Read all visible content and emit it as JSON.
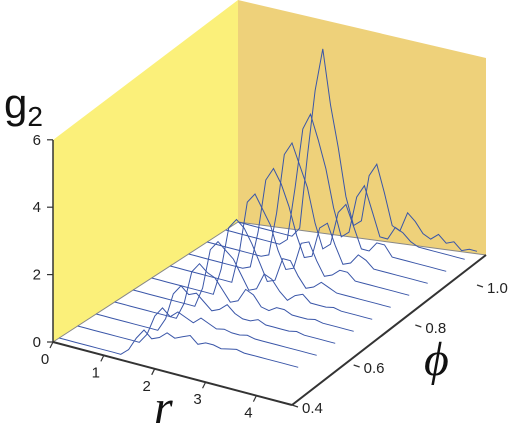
{
  "chart_data": {
    "type": "line",
    "view": "3d-waterfall",
    "x_axis": {
      "label": "r",
      "ticks": [
        "0",
        "1",
        "2",
        "3",
        "4"
      ],
      "range": [
        0,
        4.7
      ]
    },
    "depth_axis": {
      "label": "ϕ",
      "ticks": [
        "0.4",
        "0.6",
        "0.8",
        "1.0"
      ],
      "range": [
        0.4,
        1.0
      ]
    },
    "z_axis": {
      "label": "g",
      "label_sub": "2",
      "ticks": [
        "0",
        "2",
        "4",
        "6"
      ],
      "range": [
        0,
        6
      ]
    },
    "series": [
      {
        "phi": 0.42,
        "values": [
          0,
          0,
          0,
          0,
          0,
          0,
          0,
          0,
          0,
          0.2,
          0.6,
          0.9,
          0.7,
          0.8,
          1.0,
          0.9,
          1.0,
          1.1,
          0.9,
          1.0,
          1.0,
          0.95,
          1.0,
          1.05,
          1.0,
          1.0,
          1.0,
          1.0,
          1.0,
          1.0,
          1.0,
          1.0
        ]
      },
      {
        "phi": 0.48,
        "values": [
          0,
          0,
          0,
          0,
          0,
          0,
          0,
          0,
          0,
          0.3,
          0.9,
          1.2,
          1.0,
          1.2,
          1.1,
          1.0,
          1.2,
          1.1,
          1.0,
          1.05,
          1.0,
          1.0,
          1.05,
          1.0,
          1.0,
          1.0,
          1.0,
          1.0,
          1.0,
          1.0,
          1.0,
          1.0
        ]
      },
      {
        "phi": 0.54,
        "values": [
          0,
          0,
          0,
          0,
          0,
          0,
          0,
          0,
          0,
          0.4,
          1.2,
          1.5,
          1.3,
          1.4,
          1.2,
          1.0,
          1.1,
          1.3,
          1.1,
          1.0,
          1.0,
          1.1,
          1.0,
          1.0,
          1.0,
          1.0,
          1.05,
          1.0,
          1.0,
          1.0,
          1.0,
          1.0
        ]
      },
      {
        "phi": 0.6,
        "values": [
          0,
          0,
          0,
          0,
          0,
          0,
          0,
          0,
          0,
          0.5,
          1.5,
          1.8,
          1.6,
          1.5,
          1.2,
          0.9,
          1.0,
          1.4,
          1.3,
          1.0,
          0.95,
          1.1,
          1.1,
          1.0,
          1.0,
          1.0,
          1.05,
          1.0,
          1.0,
          1.0,
          1.0,
          1.0
        ]
      },
      {
        "phi": 0.66,
        "values": [
          0,
          0,
          0,
          0,
          0,
          0,
          0,
          0,
          0,
          0.6,
          1.8,
          2.1,
          1.9,
          1.7,
          1.3,
          0.9,
          1.0,
          1.5,
          1.4,
          1.1,
          0.9,
          1.1,
          1.2,
          1.0,
          1.0,
          1.0,
          1.05,
          1.0,
          1.0,
          1.0,
          1.0,
          1.0
        ]
      },
      {
        "phi": 0.72,
        "values": [
          0,
          0,
          0,
          0,
          0,
          0,
          0,
          0,
          0,
          0.8,
          2.1,
          2.4,
          2.2,
          1.8,
          1.3,
          0.8,
          0.9,
          1.6,
          1.6,
          1.2,
          0.9,
          1.0,
          1.2,
          1.1,
          1.0,
          1.0,
          1.0,
          1.0,
          1.0,
          1.0,
          1.0,
          1.0
        ]
      },
      {
        "phi": 0.78,
        "values": [
          0,
          0,
          0,
          0,
          0,
          0,
          0,
          0,
          0,
          1.0,
          2.5,
          2.8,
          2.4,
          2.0,
          1.3,
          0.8,
          0.9,
          1.7,
          1.8,
          1.3,
          0.9,
          1.0,
          1.2,
          1.2,
          1.0,
          1.0,
          1.0,
          1.0,
          1.0,
          1.0,
          1.0,
          1.0
        ]
      },
      {
        "phi": 0.84,
        "values": [
          0,
          0,
          0,
          0,
          0,
          0,
          0,
          0,
          0.1,
          1.2,
          2.8,
          3.2,
          2.8,
          2.2,
          1.4,
          0.8,
          0.9,
          1.8,
          2.0,
          1.4,
          0.9,
          1.0,
          1.3,
          1.2,
          1.0,
          1.0,
          1.0,
          1.0,
          1.0,
          1.0,
          1.0,
          1.0
        ]
      },
      {
        "phi": 0.9,
        "values": [
          0,
          0,
          0,
          0,
          0,
          0,
          0,
          0,
          0.1,
          1.4,
          3.2,
          3.6,
          3.0,
          2.4,
          1.4,
          0.7,
          0.9,
          1.9,
          2.2,
          1.6,
          1.0,
          1.0,
          1.3,
          1.3,
          1.0,
          1.0,
          1.0,
          1.0,
          1.0,
          1.0,
          1.0,
          1.0
        ]
      },
      {
        "phi": 0.96,
        "values": [
          0,
          0,
          0,
          0,
          0,
          0,
          0,
          0,
          0.2,
          1.8,
          3.6,
          4.1,
          3.4,
          2.6,
          1.5,
          0.7,
          0.9,
          2.0,
          2.4,
          1.7,
          1.0,
          1.0,
          1.4,
          1.3,
          1.1,
          1.0,
          1.0,
          1.0,
          1.0,
          1.0,
          1.0,
          1.0
        ]
      },
      {
        "phi": 1.0,
        "values": [
          0,
          0,
          0,
          0,
          0,
          0,
          0,
          0,
          0.3,
          2.5,
          4.5,
          5.8,
          4.2,
          3.0,
          1.6,
          0.8,
          1.0,
          2.4,
          2.8,
          2.0,
          1.1,
          1.0,
          1.6,
          1.4,
          1.1,
          1.0,
          1.2,
          1.0,
          1.1,
          0.9,
          1.0,
          1.0
        ]
      }
    ],
    "walls": {
      "left_color": "#fbf07a",
      "back_color": "#eed17a"
    },
    "line_color": "#3a56a8",
    "grid": false
  }
}
